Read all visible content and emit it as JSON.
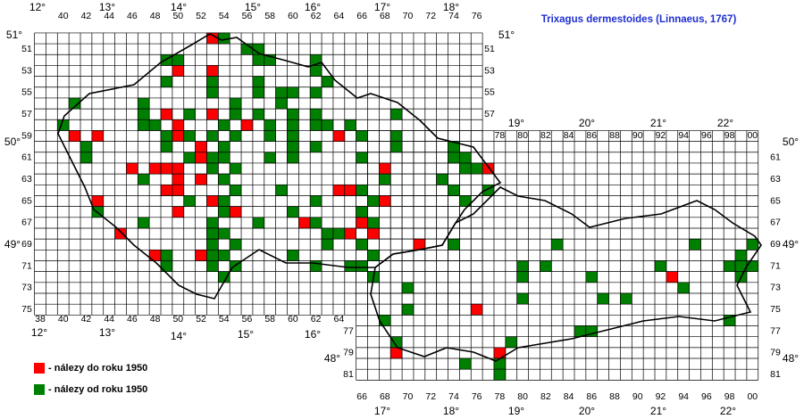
{
  "map": {
    "title": "Trixagus dermestoides (Linnaeus, 1767)",
    "col_labels_top": [
      40,
      42,
      44,
      46,
      48,
      50,
      52,
      54,
      56,
      58,
      60,
      62,
      64,
      66,
      68,
      70,
      72,
      74,
      76
    ],
    "col_labels_top_slovak": [
      78,
      80,
      82,
      84,
      86,
      88,
      90,
      92,
      94,
      96,
      98,
      {
        "value": 100,
        "label": "00"
      }
    ],
    "col_labels_bottom": [
      38,
      40,
      42,
      44,
      46,
      48,
      50,
      52,
      54,
      56,
      58,
      60,
      62,
      64
    ],
    "col_labels_bottom_slovak": [
      66,
      68,
      70,
      72,
      74,
      76,
      78,
      80,
      82,
      84,
      86,
      88,
      90,
      92,
      94,
      96,
      98,
      {
        "value": 100,
        "label": "00"
      }
    ],
    "row_labels_left": [
      51,
      53,
      55,
      57,
      59,
      61,
      63,
      65,
      67,
      69,
      71,
      73,
      75
    ],
    "row_labels_right": [
      51,
      53,
      55,
      57
    ],
    "row_labels_right_slovak": [
      61,
      63,
      65,
      67,
      69,
      71,
      73,
      75,
      77,
      79,
      81
    ],
    "row_labels_left_slovak": [
      77,
      79,
      81
    ],
    "degree_labels": [
      "12°",
      "13°",
      "14°",
      "15°",
      "16°",
      "17°",
      "18°",
      "19°",
      "20°",
      "21°",
      "22°",
      "51°",
      "51°",
      "50°",
      "50°",
      "49°",
      "49°",
      "48°",
      "48°",
      "12°",
      "13°",
      "14°",
      "15°",
      "16°",
      "17°",
      "18°",
      "19°",
      "20°",
      "21°",
      "22°"
    ],
    "records": [
      {
        "name": "- nálezy do roku 1950",
        "color": "#ff0000",
        "cells": [
          [
            53,
            50
          ],
          [
            50,
            53
          ],
          [
            53,
            53
          ],
          [
            53,
            57
          ],
          [
            49,
            57
          ],
          [
            50,
            58
          ],
          [
            56,
            58
          ],
          [
            41,
            59
          ],
          [
            43,
            59
          ],
          [
            50,
            59
          ],
          [
            64,
            59
          ],
          [
            52,
            60
          ],
          [
            52,
            61
          ],
          [
            46,
            62
          ],
          [
            48,
            62
          ],
          [
            49,
            62
          ],
          [
            50,
            62
          ],
          [
            68,
            62
          ],
          [
            77,
            62
          ],
          [
            50,
            63
          ],
          [
            52,
            63
          ],
          [
            49,
            64
          ],
          [
            50,
            64
          ],
          [
            64,
            64
          ],
          [
            65,
            64
          ],
          [
            43,
            65
          ],
          [
            53,
            65
          ],
          [
            68,
            65
          ],
          [
            50,
            66
          ],
          [
            55,
            66
          ],
          [
            61,
            67
          ],
          [
            66,
            67
          ],
          [
            45,
            68
          ],
          [
            65,
            68
          ],
          [
            67,
            68
          ],
          [
            71,
            69
          ],
          [
            48,
            70
          ],
          [
            52,
            70
          ],
          [
            93,
            72
          ],
          [
            76,
            75
          ],
          [
            69,
            79
          ],
          [
            78,
            79
          ]
        ]
      },
      {
        "name": "- nálezy od roku 1950",
        "color": "#008000",
        "cells": [
          [
            54,
            50
          ],
          [
            56,
            51
          ],
          [
            57,
            51
          ],
          [
            49,
            52
          ],
          [
            50,
            52
          ],
          [
            57,
            52
          ],
          [
            58,
            52
          ],
          [
            62,
            52
          ],
          [
            62,
            53
          ],
          [
            49,
            54
          ],
          [
            53,
            54
          ],
          [
            57,
            54
          ],
          [
            63,
            54
          ],
          [
            53,
            55
          ],
          [
            57,
            55
          ],
          [
            59,
            55
          ],
          [
            60,
            55
          ],
          [
            62,
            55
          ],
          [
            41,
            56
          ],
          [
            47,
            56
          ],
          [
            55,
            56
          ],
          [
            59,
            56
          ],
          [
            47,
            57
          ],
          [
            51,
            57
          ],
          [
            55,
            57
          ],
          [
            57,
            57
          ],
          [
            60,
            57
          ],
          [
            62,
            57
          ],
          [
            69,
            57
          ],
          [
            40,
            58
          ],
          [
            47,
            58
          ],
          [
            48,
            58
          ],
          [
            54,
            58
          ],
          [
            58,
            58
          ],
          [
            60,
            58
          ],
          [
            62,
            58
          ],
          [
            63,
            58
          ],
          [
            65,
            58
          ],
          [
            49,
            59
          ],
          [
            51,
            59
          ],
          [
            53,
            59
          ],
          [
            55,
            59
          ],
          [
            58,
            59
          ],
          [
            60,
            59
          ],
          [
            66,
            59
          ],
          [
            69,
            59
          ],
          [
            42,
            60
          ],
          [
            49,
            60
          ],
          [
            54,
            60
          ],
          [
            60,
            60
          ],
          [
            62,
            60
          ],
          [
            69,
            60
          ],
          [
            74,
            60
          ],
          [
            42,
            61
          ],
          [
            51,
            61
          ],
          [
            53,
            61
          ],
          [
            54,
            61
          ],
          [
            58,
            61
          ],
          [
            60,
            61
          ],
          [
            66,
            61
          ],
          [
            74,
            61
          ],
          [
            75,
            61
          ],
          [
            53,
            62
          ],
          [
            55,
            62
          ],
          [
            75,
            62
          ],
          [
            76,
            62
          ],
          [
            47,
            63
          ],
          [
            54,
            63
          ],
          [
            68,
            63
          ],
          [
            73,
            63
          ],
          [
            55,
            64
          ],
          [
            59,
            64
          ],
          [
            66,
            64
          ],
          [
            74,
            64
          ],
          [
            77,
            64
          ],
          [
            51,
            65
          ],
          [
            54,
            65
          ],
          [
            62,
            65
          ],
          [
            67,
            65
          ],
          [
            75,
            65
          ],
          [
            43,
            66
          ],
          [
            54,
            66
          ],
          [
            60,
            66
          ],
          [
            66,
            66
          ],
          [
            47,
            67
          ],
          [
            53,
            67
          ],
          [
            57,
            67
          ],
          [
            62,
            67
          ],
          [
            67,
            67
          ],
          [
            53,
            68
          ],
          [
            54,
            68
          ],
          [
            63,
            68
          ],
          [
            64,
            68
          ],
          [
            53,
            69
          ],
          [
            55,
            69
          ],
          [
            63,
            69
          ],
          [
            66,
            69
          ],
          [
            74,
            69
          ],
          [
            83,
            69
          ],
          [
            95,
            69
          ],
          [
            100,
            69
          ],
          [
            49,
            70
          ],
          [
            53,
            70
          ],
          [
            54,
            70
          ],
          [
            60,
            70
          ],
          [
            67,
            70
          ],
          [
            99,
            70
          ],
          [
            49,
            71
          ],
          [
            53,
            71
          ],
          [
            55,
            71
          ],
          [
            62,
            71
          ],
          [
            65,
            71
          ],
          [
            66,
            71
          ],
          [
            80,
            71
          ],
          [
            82,
            71
          ],
          [
            92,
            71
          ],
          [
            98,
            71
          ],
          [
            99,
            71
          ],
          [
            100,
            71
          ],
          [
            54,
            72
          ],
          [
            67,
            72
          ],
          [
            80,
            72
          ],
          [
            86,
            72
          ],
          [
            99,
            72
          ],
          [
            70,
            73
          ],
          [
            94,
            73
          ],
          [
            80,
            74
          ],
          [
            87,
            74
          ],
          [
            89,
            74
          ],
          [
            70,
            75
          ],
          [
            68,
            76
          ],
          [
            98,
            76
          ],
          [
            85,
            77
          ],
          [
            86,
            77
          ],
          [
            69,
            78
          ],
          [
            79,
            78
          ],
          [
            75,
            80
          ],
          [
            78,
            80
          ],
          [
            78,
            81
          ]
        ]
      }
    ]
  }
}
